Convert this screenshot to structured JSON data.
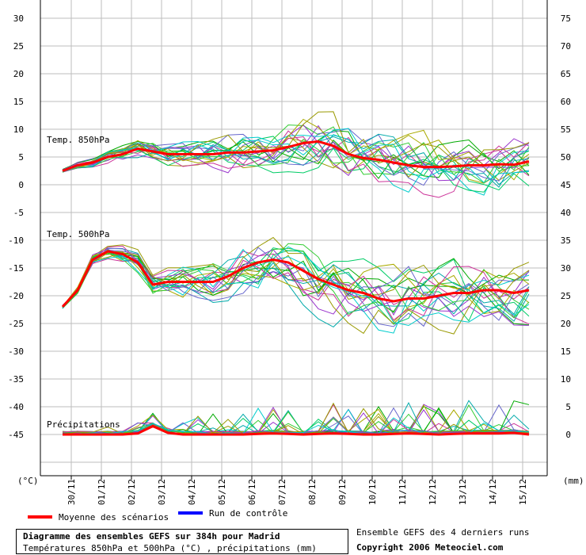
{
  "chart_data": {
    "type": "line",
    "title": "Diagramme des ensembles GEFS sur 384h pour Madrid",
    "subtitle": "Températures 850hPa et 500hPa (°C) , précipitations (mm)",
    "left_axis": {
      "unit_label": "(°C)",
      "ticks": [
        30,
        25,
        20,
        15,
        10,
        5,
        0,
        -5,
        -10,
        -15,
        -20,
        -25,
        -30,
        -35,
        -40,
        -45
      ],
      "range": [
        -50,
        32
      ]
    },
    "right_axis": {
      "unit_label": "(mm)",
      "ticks": [
        75,
        70,
        65,
        60,
        55,
        50,
        45,
        40,
        35,
        30,
        25,
        20,
        15,
        10,
        5,
        0
      ],
      "range": [
        -5,
        77
      ]
    },
    "x_axis": {
      "categories": [
        "30/11",
        "01/12",
        "02/12",
        "03/12",
        "04/12",
        "05/12",
        "06/12",
        "07/12",
        "08/12",
        "09/12",
        "10/12",
        "11/12",
        "12/12",
        "13/12",
        "14/12",
        "15/12"
      ]
    },
    "grid": true,
    "panels": [
      {
        "label": "Temp. 850hPa",
        "mean_series": {
          "name": "Moyenne des scénarios",
          "x": [
            0,
            0.5,
            1,
            1.5,
            2,
            2.5,
            3,
            3.5,
            4,
            4.5,
            5,
            5.5,
            6,
            6.5,
            7,
            7.5,
            8,
            8.5,
            9,
            9.5,
            10,
            10.5,
            11,
            11.5,
            12,
            12.5,
            13,
            13.5,
            14,
            14.5,
            15,
            15.5
          ],
          "values": [
            2.5,
            3.5,
            4,
            5,
            5.5,
            6.5,
            6,
            5.5,
            5.5,
            5.5,
            5.5,
            5.8,
            5.8,
            6,
            6.2,
            6.8,
            7.5,
            7.8,
            7,
            5.5,
            4.8,
            4.5,
            4,
            3.5,
            3.2,
            3.2,
            3.3,
            3.5,
            3.5,
            3.7,
            3.6,
            4.2
          ]
        }
      },
      {
        "label": "Temp. 500hPa",
        "mean_series": {
          "name": "Moyenne des scénarios",
          "x": [
            0,
            0.5,
            1,
            1.5,
            2,
            2.5,
            3,
            3.5,
            4,
            4.5,
            5,
            5.5,
            6,
            6.5,
            7,
            7.5,
            8,
            8.5,
            9,
            9.5,
            10,
            10.5,
            11,
            11.5,
            12,
            12.5,
            13,
            13.5,
            14,
            14.5,
            15,
            15.5
          ],
          "values": [
            -22,
            -19,
            -13.5,
            -12,
            -12.5,
            -14,
            -18,
            -17.5,
            -17.5,
            -17.5,
            -17.5,
            -16.5,
            -15,
            -14,
            -13.5,
            -14,
            -15.5,
            -17,
            -18,
            -19,
            -19.5,
            -20.5,
            -21,
            -20.5,
            -20.5,
            -20,
            -19.5,
            -19.5,
            -19,
            -19,
            -19.5,
            -19
          ]
        }
      },
      {
        "label": "Précipitations",
        "mean_series": {
          "name": "Moyenne des scénarios",
          "x": [
            0,
            0.5,
            1,
            1.5,
            2,
            2.5,
            3,
            3.5,
            4,
            4.5,
            5,
            5.5,
            6,
            6.5,
            7,
            7.5,
            8,
            8.5,
            9,
            9.5,
            10,
            10.5,
            11,
            11.5,
            12,
            12.5,
            13,
            13.5,
            14,
            14.5,
            15,
            15.5
          ],
          "values": [
            0,
            0,
            0,
            0,
            0,
            0.2,
            1.5,
            0.3,
            0,
            0,
            0,
            0,
            0,
            0.1,
            0.2,
            0.1,
            0,
            0.1,
            0.2,
            0.1,
            0,
            0,
            0.1,
            0.2,
            0.1,
            0,
            0.1,
            0.2,
            0.2,
            0.2,
            0.3,
            0
          ]
        }
      }
    ],
    "legend": [
      {
        "name": "Moyenne des scénarios",
        "color": "#ff0000"
      },
      {
        "name": "Run de contrôle",
        "color": "#0000ff"
      }
    ],
    "ensemble_colors": [
      "#00aa00",
      "#00cc66",
      "#9933cc",
      "#aaaa00",
      "#00aaaa",
      "#cc3399",
      "#33cc33",
      "#6666cc",
      "#999900",
      "#00cccc"
    ],
    "notes": [
      "Ensemble GEFS des 4 derniers runs",
      "Copyright 2006 Meteociel.com"
    ]
  }
}
